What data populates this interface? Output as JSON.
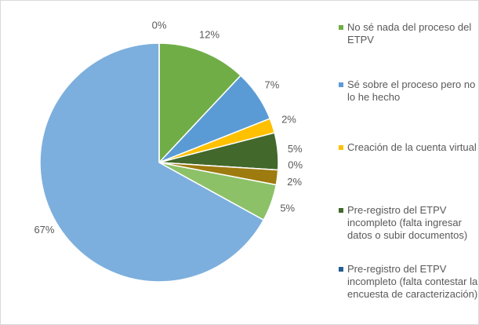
{
  "chart_data": {
    "type": "pie",
    "categories": [
      "No sé nada del proceso del ETPV",
      "Sé sobre el proceso pero no lo he hecho",
      "Creación de la cuenta virtual",
      "Pre-registro del ETPV incompleto (falta ingresar datos o subir documentos)",
      "Pre-registro del ETPV incompleto (falta contestar la encuesta de caracterización)",
      null,
      null,
      null,
      null
    ],
    "values": [
      12,
      7,
      2,
      5,
      0,
      2,
      5,
      67,
      0
    ],
    "value_labels": [
      "12%",
      "7%",
      "2%",
      "5%",
      "0%",
      "2%",
      "5%",
      "67%",
      "0%"
    ],
    "colors": [
      "#70ad47",
      "#5b9bd5",
      "#ffc000",
      "#43682b",
      "#255e91",
      "#9e7b0f",
      "#8cc168",
      "#7cafdd",
      "#264478"
    ]
  }
}
